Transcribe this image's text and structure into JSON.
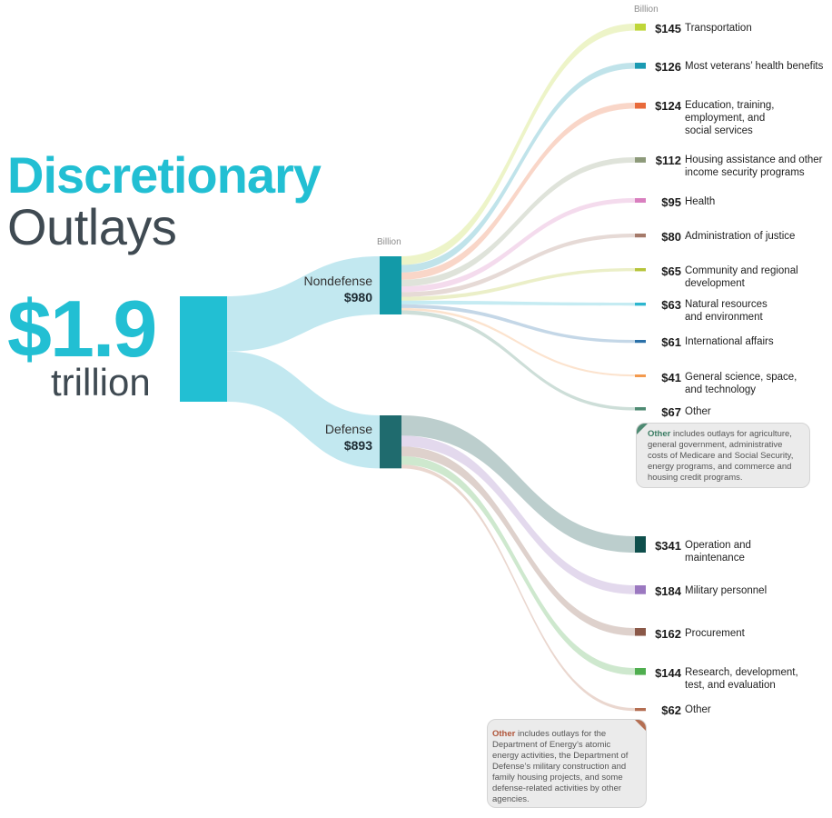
{
  "title": {
    "line1": "Discretionary",
    "line2": "Outlays"
  },
  "total": {
    "value": "$1.9",
    "unit": "trillion",
    "billions": 1873
  },
  "unit_label": "Billion",
  "colors": {
    "accent": "#22bfd3",
    "title_dark": "#3f4a52",
    "nondefense_node": "#139aa8",
    "defense_node": "#1f6b6e"
  },
  "chart_data": {
    "type": "sankey",
    "title": "Discretionary Outlays",
    "unit": "Billion",
    "total": 1873,
    "groups": [
      {
        "name": "Nondefense",
        "value": 980,
        "value_label": "$980",
        "items": [
          {
            "label": "Transportation",
            "value": 145,
            "value_label": "$145",
            "color": "#bfd639"
          },
          {
            "label": "Most veterans’ health benefits",
            "value": 126,
            "value_label": "$126",
            "color": "#1b9ab2"
          },
          {
            "label": "Education, training, employment, and social services",
            "value": 124,
            "value_label": "$124",
            "color": "#e86a3a"
          },
          {
            "label": "Housing assistance and other income security programs",
            "value": 112,
            "value_label": "$112",
            "color": "#8d9a7a"
          },
          {
            "label": "Health",
            "value": 95,
            "value_label": "$95",
            "color": "#d97fbf"
          },
          {
            "label": "Administration of justice",
            "value": 80,
            "value_label": "$80",
            "color": "#a57a6a"
          },
          {
            "label": "Community and regional development",
            "value": 65,
            "value_label": "$65",
            "color": "#b6c43a"
          },
          {
            "label": "Natural resources and environment",
            "value": 63,
            "value_label": "$63",
            "color": "#2db6cf"
          },
          {
            "label": "International affairs",
            "value": 61,
            "value_label": "$61",
            "color": "#2a70a8"
          },
          {
            "label": "General science, space, and technology",
            "value": 41,
            "value_label": "$41",
            "color": "#f39a4e"
          },
          {
            "label": "Other",
            "value": 67,
            "value_label": "$67",
            "color": "#4d8a72"
          }
        ]
      },
      {
        "name": "Defense",
        "value": 893,
        "value_label": "$893",
        "items": [
          {
            "label": "Operation and maintenance",
            "value": 341,
            "value_label": "$341",
            "color": "#0f4f4c"
          },
          {
            "label": "Military personnel",
            "value": 184,
            "value_label": "$184",
            "color": "#9b78c0"
          },
          {
            "label": "Procurement",
            "value": 162,
            "value_label": "$162",
            "color": "#8a5848"
          },
          {
            "label": "Research, development, test, and evaluation",
            "value": 144,
            "value_label": "$144",
            "color": "#4fae4f"
          },
          {
            "label": "Other",
            "value": 62,
            "value_label": "$62",
            "color": "#b46e52"
          }
        ]
      }
    ]
  },
  "notes": {
    "nondefense": {
      "lead": "Other",
      "text": " includes outlays for agriculture, general government, administrative costs of Medicare and Social Security, energy programs, and commerce and housing credit programs."
    },
    "defense": {
      "lead": "Other",
      "text": " includes outlays for the Department of Energy’s atomic energy activities, the Department of Defense’s military construction and family housing projects, and some defense-related activities by other agencies."
    }
  }
}
